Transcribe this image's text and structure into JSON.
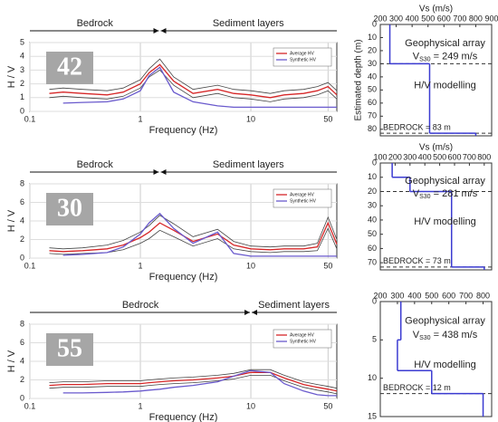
{
  "chart_data": [
    {
      "type": "hv",
      "badge": "42",
      "ylabel": "H / V",
      "xlabel": "Frequency (Hz)",
      "left_label": "Bedrock",
      "right_label": "Sediment layers",
      "log_x": true,
      "grid": true,
      "xlim": [
        0.1,
        60
      ],
      "xticks": [
        0.1,
        1,
        10,
        50
      ],
      "ylim": [
        0,
        5
      ],
      "yticks": [
        0,
        1,
        2,
        3,
        4,
        5
      ],
      "x": [
        0.15,
        0.2,
        0.3,
        0.5,
        0.7,
        1,
        1.2,
        1.5,
        2,
        3,
        5,
        7,
        10,
        15,
        20,
        30,
        40,
        50,
        60
      ],
      "series": [
        {
          "color": "#444444",
          "values": [
            1.6,
            1.7,
            1.6,
            1.5,
            1.7,
            2.3,
            3.1,
            3.8,
            2.5,
            1.6,
            1.9,
            1.6,
            1.5,
            1.3,
            1.5,
            1.6,
            1.8,
            2.1,
            1.5
          ]
        },
        {
          "color": "#444444",
          "values": [
            1.0,
            1.1,
            1.0,
            0.9,
            1.1,
            1.7,
            2.5,
            3.0,
            1.9,
            1.0,
            1.3,
            1.0,
            0.9,
            0.7,
            0.9,
            1.0,
            1.2,
            1.5,
            0.9
          ]
        },
        {
          "name": "Average HV",
          "color": "#d62728",
          "values": [
            1.3,
            1.4,
            1.3,
            1.2,
            1.4,
            2.0,
            2.8,
            3.4,
            2.2,
            1.3,
            1.6,
            1.3,
            1.2,
            1.0,
            1.2,
            1.3,
            1.5,
            1.8,
            1.2
          ]
        },
        {
          "name": "Synthetic HV",
          "color": "#6a5acd",
          "values": [
            null,
            0.6,
            0.65,
            0.7,
            0.9,
            1.5,
            2.6,
            3.2,
            1.4,
            0.7,
            0.4,
            0.3,
            0.3,
            0.3,
            0.3,
            0.3,
            0.3,
            0.3,
            0.3
          ]
        }
      ]
    },
    {
      "type": "profile",
      "xlabel": "Vs (m/s)",
      "ylabel": "Estimated depth (m)",
      "xlim": [
        200,
        900
      ],
      "xticks": [
        200,
        300,
        400,
        500,
        600,
        700,
        800,
        900
      ],
      "ylim": [
        0,
        85
      ],
      "yticks": [
        0,
        10,
        20,
        30,
        40,
        50,
        60,
        70,
        80
      ],
      "depths": [
        0,
        30,
        83,
        85
      ],
      "vs": [
        260,
        510,
        800
      ],
      "dashed_depths": [
        30,
        83
      ],
      "array_label": "Geophysical array",
      "vs30_symbol": "V",
      "vs30_subscript": "S30",
      "vs30_text": " = 249 m/s",
      "model_label": "H/V modelling",
      "bedrock_label": "BEDROCK = 83 m"
    },
    {
      "type": "hv",
      "badge": "30",
      "ylabel": "H / V",
      "xlabel": "Frequency (Hz)",
      "left_label": "Bedrock",
      "right_label": "Sediment layers",
      "log_x": true,
      "grid": true,
      "xlim": [
        0.1,
        60
      ],
      "xticks": [
        0.1,
        1,
        10,
        50
      ],
      "ylim": [
        0,
        8
      ],
      "yticks": [
        0,
        2,
        4,
        6,
        8
      ],
      "x": [
        0.15,
        0.2,
        0.3,
        0.5,
        0.7,
        1,
        1.2,
        1.5,
        2,
        3,
        5,
        7,
        10,
        15,
        20,
        30,
        40,
        50,
        60
      ],
      "series": [
        {
          "color": "#444444",
          "values": [
            1.1,
            1.0,
            1.1,
            1.4,
            1.9,
            2.8,
            3.5,
            4.6,
            3.7,
            2.3,
            3.1,
            1.8,
            1.3,
            1.2,
            1.3,
            1.3,
            1.6,
            4.4,
            2.0
          ]
        },
        {
          "color": "#444444",
          "values": [
            0.5,
            0.4,
            0.5,
            0.6,
            0.9,
            1.6,
            2.1,
            3.0,
            2.3,
            1.3,
            2.1,
            1.0,
            0.7,
            0.6,
            0.7,
            0.7,
            0.8,
            3.2,
            1.0
          ]
        },
        {
          "name": "Average HV",
          "color": "#d62728",
          "values": [
            0.8,
            0.7,
            0.8,
            1.0,
            1.4,
            2.2,
            2.8,
            3.8,
            3.0,
            1.8,
            2.6,
            1.4,
            1.0,
            0.9,
            1.0,
            1.0,
            1.2,
            3.8,
            1.5
          ]
        },
        {
          "name": "Synthetic HV",
          "color": "#6a5acd",
          "values": [
            null,
            0.3,
            0.4,
            0.6,
            1.2,
            2.6,
            3.8,
            4.8,
            3.2,
            1.6,
            2.8,
            0.5,
            0.2,
            0.2,
            0.2,
            0.2,
            0.2,
            0.2,
            0.2
          ]
        }
      ]
    },
    {
      "type": "profile",
      "xlabel": "Vs (m/s)",
      "xlim": [
        100,
        850
      ],
      "xticks": [
        100,
        200,
        300,
        400,
        500,
        600,
        700,
        800
      ],
      "ylim": [
        0,
        75
      ],
      "yticks": [
        0,
        10,
        20,
        30,
        40,
        50,
        60,
        70
      ],
      "depths": [
        0,
        10,
        20,
        73,
        75
      ],
      "vs": [
        180,
        300,
        580,
        800
      ],
      "dashed_depths": [
        20,
        73
      ],
      "array_label": "Geophysical array",
      "vs30_symbol": "V",
      "vs30_subscript": "S30",
      "vs30_text": " = 281 m/s",
      "model_label": "H/V modelling",
      "bedrock_label": "BEDROCK = 73 m"
    },
    {
      "type": "hv",
      "badge": "55",
      "ylabel": "H / V",
      "xlabel": "Frequency (Hz)",
      "left_label": "Bedrock",
      "right_label": "Sediment layers",
      "log_x": true,
      "grid": true,
      "xlim": [
        0.1,
        60
      ],
      "xticks": [
        0.1,
        1,
        10,
        50
      ],
      "ylim": [
        0,
        8
      ],
      "yticks": [
        0,
        2,
        4,
        6,
        8
      ],
      "x": [
        0.15,
        0.2,
        0.3,
        0.5,
        0.7,
        1,
        1.2,
        1.5,
        2,
        3,
        5,
        7,
        10,
        15,
        20,
        30,
        40,
        50,
        60
      ],
      "series": [
        {
          "color": "#444444",
          "values": [
            1.7,
            1.8,
            1.8,
            1.9,
            1.9,
            1.9,
            2.0,
            2.1,
            2.2,
            2.3,
            2.5,
            2.7,
            3.1,
            3.1,
            2.5,
            1.8,
            1.5,
            1.3,
            1.1
          ]
        },
        {
          "color": "#444444",
          "values": [
            1.1,
            1.2,
            1.2,
            1.3,
            1.3,
            1.3,
            1.4,
            1.5,
            1.6,
            1.7,
            1.9,
            2.1,
            2.5,
            2.5,
            1.9,
            1.2,
            0.9,
            0.7,
            0.5
          ]
        },
        {
          "name": "Average HV",
          "color": "#d62728",
          "values": [
            1.4,
            1.5,
            1.5,
            1.6,
            1.6,
            1.6,
            1.7,
            1.8,
            1.9,
            2.0,
            2.2,
            2.4,
            2.8,
            2.8,
            2.2,
            1.5,
            1.2,
            1.0,
            0.8
          ]
        },
        {
          "name": "Synthetic HV",
          "color": "#6a5acd",
          "values": [
            null,
            0.6,
            0.6,
            0.65,
            0.7,
            0.8,
            0.9,
            1.0,
            1.2,
            1.4,
            1.8,
            2.4,
            3.0,
            2.8,
            1.6,
            0.8,
            0.4,
            0.3,
            0.3
          ]
        }
      ]
    },
    {
      "type": "profile",
      "xlim": [
        200,
        850
      ],
      "xticks": [
        200,
        300,
        400,
        500,
        600,
        700,
        800
      ],
      "ylim": [
        0,
        15
      ],
      "yticks": [
        0,
        5,
        10,
        15
      ],
      "depths": [
        0,
        5,
        9,
        12,
        15
      ],
      "vs": [
        320,
        300,
        500,
        800
      ],
      "dashed_depths": [
        12
      ],
      "array_label": "Geophysical array",
      "vs30_symbol": "V",
      "vs30_subscript": "S30",
      "vs30_text": " = 438 m/s",
      "model_label": "H/V modelling",
      "bedrock_label": "BEDROCK = 12 m"
    }
  ]
}
